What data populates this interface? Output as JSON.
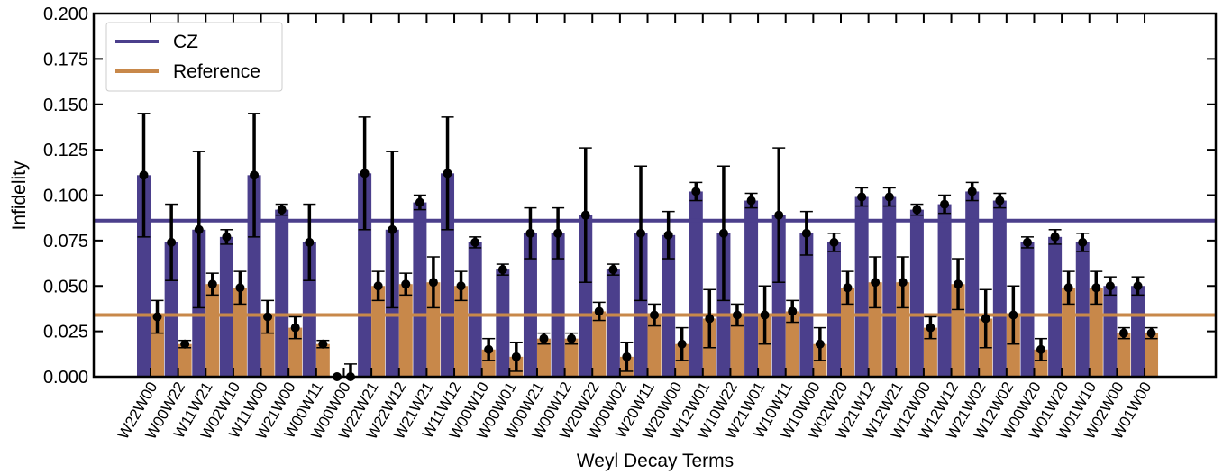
{
  "chart_data": {
    "type": "bar",
    "xlabel": "Weyl Decay Terms",
    "ylabel": "Infidelity",
    "ylim": [
      0,
      0.2
    ],
    "yticks": [
      "0.000",
      "0.025",
      "0.050",
      "0.075",
      "0.100",
      "0.125",
      "0.150",
      "0.175",
      "0.200"
    ],
    "legend_position": "top-left",
    "categories": [
      "W22W00",
      "W00W22",
      "W11W21",
      "W02W10",
      "W11W00",
      "W21W00",
      "W00W11",
      "W00W00",
      "W22W21",
      "W22W12",
      "W21W21",
      "W11W12",
      "W00W10",
      "W00W01",
      "W00W21",
      "W00W12",
      "W20W22",
      "W00W02",
      "W20W11",
      "W20W00",
      "W12W01",
      "W10W22",
      "W21W01",
      "W10W11",
      "W10W00",
      "W02W20",
      "W21W12",
      "W12W21",
      "W12W00",
      "W12W12",
      "W21W02",
      "W12W02",
      "W00W20",
      "W01W20",
      "W01W10",
      "W02W00",
      "W01W00"
    ],
    "series": [
      {
        "name": "CZ",
        "color": "#4b3f8c",
        "values": [
          0.111,
          0.074,
          0.081,
          0.077,
          0.111,
          0.092,
          0.074,
          0.0,
          0.112,
          0.081,
          0.096,
          0.112,
          0.074,
          0.059,
          0.079,
          0.079,
          0.089,
          0.059,
          0.079,
          0.078,
          0.102,
          0.079,
          0.097,
          0.089,
          0.079,
          0.074,
          0.099,
          0.099,
          0.092,
          0.095,
          0.102,
          0.097,
          0.074,
          0.077,
          0.074,
          0.05,
          0.05
        ],
        "errors": [
          0.034,
          0.021,
          0.043,
          0.004,
          0.034,
          0.003,
          0.021,
          0.0,
          0.031,
          0.043,
          0.004,
          0.031,
          0.003,
          0.003,
          0.014,
          0.014,
          0.037,
          0.003,
          0.037,
          0.013,
          0.005,
          0.037,
          0.004,
          0.037,
          0.012,
          0.005,
          0.005,
          0.005,
          0.003,
          0.005,
          0.005,
          0.004,
          0.003,
          0.004,
          0.005,
          0.005,
          0.005
        ],
        "reference_line": 0.086
      },
      {
        "name": "Reference",
        "color": "#c8884a",
        "values": [
          0.033,
          0.018,
          0.051,
          0.049,
          0.033,
          0.027,
          0.018,
          0.0,
          0.05,
          0.051,
          0.052,
          0.05,
          0.015,
          0.011,
          0.021,
          0.021,
          0.036,
          0.011,
          0.034,
          0.018,
          0.032,
          0.034,
          0.034,
          0.036,
          0.018,
          0.049,
          0.052,
          0.052,
          0.027,
          0.051,
          0.032,
          0.034,
          0.015,
          0.049,
          0.049,
          0.024,
          0.024
        ],
        "errors": [
          0.009,
          0.002,
          0.006,
          0.009,
          0.009,
          0.006,
          0.002,
          0.007,
          0.008,
          0.006,
          0.014,
          0.008,
          0.006,
          0.008,
          0.003,
          0.003,
          0.005,
          0.008,
          0.006,
          0.009,
          0.016,
          0.006,
          0.016,
          0.006,
          0.009,
          0.009,
          0.014,
          0.014,
          0.006,
          0.014,
          0.016,
          0.016,
          0.006,
          0.009,
          0.009,
          0.003,
          0.003
        ],
        "reference_line": 0.034
      }
    ]
  }
}
